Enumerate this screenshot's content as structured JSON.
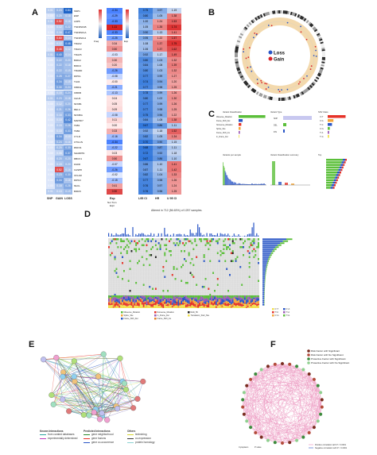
{
  "panels": {
    "a": {
      "letter": "A",
      "column_labels": [
        "SNP",
        "GAIN",
        "LOSS",
        "Exp",
        "L95 CI",
        "HR",
        "U 95 CI"
      ],
      "legend_freq_label": "Freq",
      "legend_exp_label": "Exp",
      "legend_exp_sub": "Nor  Tum",
      "legend_exp_sub2": "Expr",
      "rows": [
        {
          "gene": "SNP1",
          "snp": "0.01",
          "gain": "0.24",
          "loss": "0.84",
          "exp": "-0.34",
          "l95": "0.75",
          "hr": "0.97",
          "u95": "1.19"
        },
        {
          "gene": "ENP",
          "snp": "0.00",
          "gain": "0.20",
          "loss": "0.18",
          "exp": "-0.29",
          "l95": "0.80",
          "hr": "1.05",
          "u95": "1.38"
        },
        {
          "gene": "LRP5",
          "snp": "0.01",
          "gain": "0.52",
          "loss": "0.16",
          "exp": "-0.33",
          "l95": "1.00",
          "hr": "1.24",
          "u95": "1.53"
        },
        {
          "gene": "TNFRSF1B",
          "snp": "0.00",
          "gain": "0.12",
          "loss": "0.22",
          "exp": "1.11",
          "l95": "1.05",
          "hr": "1.35",
          "u95": "1.74"
        },
        {
          "gene": "TNFRSF1A",
          "snp": "0.00",
          "gain": "0.16",
          "loss": "0.47",
          "exp": "-0.33",
          "l95": "0.90",
          "hr": "1.13",
          "u95": "1.41"
        },
        {
          "gene": "TNFRSF14",
          "snp": "0.00",
          "gain": "0.60",
          "loss": "0.14",
          "exp": "-0.25",
          "l95": "0.95",
          "hr": "1.22",
          "u95": "1.57"
        },
        {
          "gene": "TRAF2",
          "snp": "0.00",
          "gain": "0.12",
          "loss": "0.48",
          "exp": "0.34",
          "l95": "1.08",
          "hr": "1.37",
          "u95": "1.75"
        },
        {
          "gene": "TRAF3",
          "snp": "0.00",
          "gain": "0.46",
          "loss": "0.12",
          "exp": "0.50",
          "l95": "1.06",
          "hr": "1.37",
          "u95": "1.62"
        },
        {
          "gene": "TRAF5",
          "snp": "0.01",
          "gain": "0.40",
          "loss": "0.14",
          "exp": "-0.03",
          "l95": "0.92",
          "hr": "1.17",
          "u95": "1.49"
        },
        {
          "gene": "BIRC2",
          "snp": "0.00",
          "gain": "0.22",
          "loss": "0.20",
          "exp": "0.30",
          "l95": "0.80",
          "hr": "1.03",
          "u95": "1.32"
        },
        {
          "gene": "BIRC3",
          "snp": "0.00",
          "gain": "0.22",
          "loss": "0.18",
          "exp": "0.20",
          "l95": "0.84",
          "hr": "1.08",
          "u95": "1.39"
        },
        {
          "gene": "TRADD",
          "snp": "0.00",
          "gain": "0.22",
          "loss": "0.19",
          "exp": "-0.26",
          "l95": "0.80",
          "hr": "1.03",
          "u95": "1.32"
        },
        {
          "gene": "RIPK1",
          "snp": "0.00",
          "gain": "0.28",
          "loss": "0.27",
          "exp": "-0.08",
          "l95": "0.77",
          "hr": "0.99",
          "u95": "1.27"
        },
        {
          "gene": "TLR4",
          "snp": "0.00",
          "gain": "0.34",
          "loss": "0.15",
          "exp": "-0.00",
          "l95": "0.74",
          "hr": "0.94",
          "u95": "1.20"
        },
        {
          "gene": "IKBKG",
          "snp": "0.00",
          "gain": "0.30",
          "loss": "0.24",
          "exp": "-0.21",
          "l95": "0.77",
          "hr": "0.98",
          "u95": "1.25"
        },
        {
          "gene": "IKBKB",
          "snp": "0.00",
          "gain": "0.15",
          "loss": "0.24",
          "exp": "-0.13",
          "l95": "0.78",
          "hr": "0.99",
          "u95": "1.26"
        },
        {
          "gene": "CHUK",
          "snp": "0.01",
          "gain": "0.23",
          "loss": "0.18",
          "exp": "0.04",
          "l95": "0.80",
          "hr": "1.02",
          "u95": "1.30"
        },
        {
          "gene": "NFKB1",
          "snp": "0.00",
          "gain": "0.12",
          "loss": "0.20",
          "exp": "0.05",
          "l95": "0.77",
          "hr": "0.99",
          "u95": "1.26"
        },
        {
          "gene": "RELA",
          "snp": "0.00",
          "gain": "0.21",
          "loss": "0.26",
          "exp": "0.09",
          "l95": "0.77",
          "hr": "0.98",
          "u95": "1.25"
        },
        {
          "gene": "NFKBIA",
          "snp": "0.00",
          "gain": "0.16",
          "loss": "0.33",
          "exp": "-0.08",
          "l95": "0.75",
          "hr": "0.96",
          "u95": "1.22"
        },
        {
          "gene": "MAP3K7",
          "snp": "0.00",
          "gain": "0.10",
          "loss": "0.42",
          "exp": "0.11",
          "l95": "0.84",
          "hr": "1.08",
          "u95": "1.38"
        },
        {
          "gene": "TAB1",
          "snp": "0.00",
          "gain": "0.15",
          "loss": "0.26",
          "exp": "0.00",
          "l95": "0.67",
          "hr": "0.86",
          "u95": "1.11"
        },
        {
          "gene": "TAB2",
          "snp": "0.00",
          "gain": "0.10",
          "loss": "0.33",
          "exp": "0.33",
          "l95": "0.92",
          "hr": "1.18",
          "u95": "1.52"
        },
        {
          "gene": "CYLD",
          "snp": "0.00",
          "gain": "0.34",
          "loss": "0.10",
          "exp": "-0.16",
          "l95": "0.82",
          "hr": "1.05",
          "u95": "1.34"
        },
        {
          "gene": "OTULIN",
          "snp": "0.00",
          "gain": "0.24",
          "loss": "0.16",
          "exp": "-0.34",
          "l95": "0.70",
          "hr": "0.90",
          "u95": "1.15"
        },
        {
          "gene": "RNF31",
          "snp": "0.00",
          "gain": "0.20",
          "loss": "0.30",
          "exp": "-0.22",
          "l95": "0.68",
          "hr": "0.87",
          "u95": "1.11"
        },
        {
          "gene": "SHARPIN",
          "snp": "0.00",
          "gain": "0.08",
          "loss": "0.37",
          "exp": "0.03",
          "l95": "0.72",
          "hr": "0.92",
          "u95": "1.18"
        },
        {
          "gene": "RBCK1",
          "snp": "0.00",
          "gain": "0.20",
          "loss": "0.20",
          "exp": "0.50",
          "l95": "0.67",
          "hr": "0.86",
          "u95": "1.10"
        },
        {
          "gene": "FADD",
          "snp": "0.00",
          "gain": "0.15",
          "loss": "0.20",
          "exp": "-0.07",
          "l95": "0.86",
          "hr": "1.10",
          "u95": "1.41"
        },
        {
          "gene": "CASP8",
          "snp": "0.00",
          "gain": "0.52",
          "loss": "0.16",
          "exp": "-0.26",
          "l95": "0.87",
          "hr": "1.11",
          "u95": "1.42"
        },
        {
          "gene": "CFLAR",
          "snp": "0.00",
          "gain": "0.23",
          "loss": "0.30",
          "exp": "-0.02",
          "l95": "0.82",
          "hr": "1.04",
          "u95": "1.33"
        },
        {
          "gene": "RIPK3",
          "snp": "0.00",
          "gain": "0.34",
          "loss": "0.16",
          "exp": "-0.15",
          "l95": "0.77",
          "hr": "0.98",
          "u95": "1.26"
        },
        {
          "gene": "MLKL",
          "snp": "0.00",
          "gain": "0.18",
          "loss": "0.28",
          "exp": "0.41",
          "l95": "0.76",
          "hr": "0.97",
          "u95": "1.24"
        },
        {
          "gene": "BIRC5",
          "snp": "0.01",
          "gain": "0.13",
          "loss": "0.19",
          "exp": "0.90",
          "l95": "0.76",
          "hr": "0.96",
          "u95": "1.25"
        }
      ]
    },
    "b": {
      "letter": "B",
      "legend": [
        {
          "label": "Loss",
          "color": "#2a56c6"
        },
        {
          "label": "Gain",
          "color": "#d8232a"
        }
      ]
    },
    "c": {
      "letter": "C",
      "sub_titles": [
        "Variant Classification",
        "Variant Type",
        "SNV Class",
        "Variants per sample",
        "Variant Classification summary",
        "Top"
      ],
      "legend_items": [
        "Missense_Mutation",
        "Frame_Shift_Del",
        "Nonsense_Mutation",
        "Splice_Site",
        "Frame_Shift_Ins",
        "In_Frame_Del"
      ],
      "variant_types": [
        "SNP",
        "DEL",
        "INS"
      ],
      "snv_classes": [
        "C>T",
        "C>A",
        "T>C",
        "C>G",
        "T>A",
        "T>G"
      ]
    },
    "d": {
      "letter": "D",
      "title": "Altered in 712 (56.63%) of 1257 samples.",
      "legend_left": [
        "Missense_Mutation",
        "Splice_Site",
        "Frame_Shift_Del",
        "Nonsense_Mutation",
        "In_Frame_Del",
        "Frame_Shift_Ins",
        "Multi_Hit",
        "Translation_Start_Site"
      ],
      "legend_right": [
        "C>T",
        "T>C",
        "C>G",
        "C>A",
        "T>A",
        "T>G"
      ]
    },
    "e": {
      "letter": "E",
      "legend_sections": [
        "Known Interactions",
        "Predicted Interactions",
        "Others"
      ],
      "legend_items": [
        "from curated databases",
        "experimentally determined",
        "gene neighborhood",
        "gene fusions",
        "gene co-occurrence",
        "textmining",
        "co-expression",
        "protein homology"
      ]
    },
    "f": {
      "letter": "F",
      "legend": [
        {
          "label": "Risk Factor with Significant",
          "color": "#7a2b1f"
        },
        {
          "label": "Risk Factor with No Significant",
          "color": "#b34a3a"
        },
        {
          "label": "Protective Factor with Significant",
          "color": "#3c8a3c"
        },
        {
          "label": "Protective Factor with No Significant",
          "color": "#8fcf8f"
        }
      ],
      "bottom_legend": [
        "Cytoplasm",
        "P value"
      ],
      "corr_legend": [
        "Positive correlation with P < 0.0001",
        "Negative correlation with P < 0.0001"
      ]
    }
  },
  "colors": {
    "blue": "#2b6fc2",
    "red": "#d8232a",
    "green": "#5bbf3a",
    "pink": "#e98bb9",
    "beige": "#f0d5a8"
  }
}
